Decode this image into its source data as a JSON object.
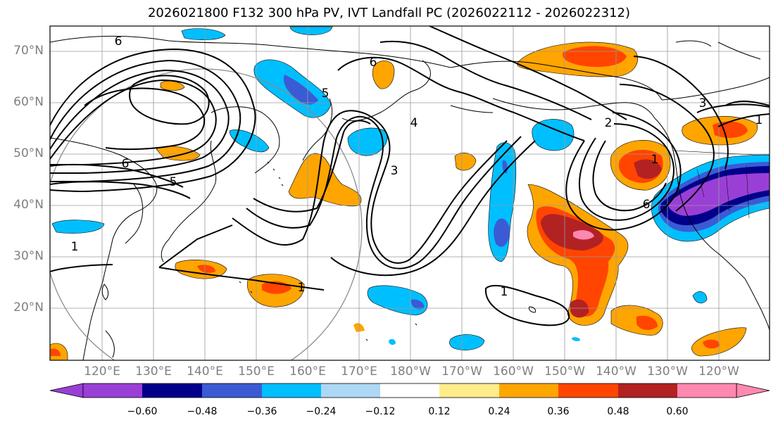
{
  "title": "2026021800 F132 300 hPa PV, IVT Landfall PC (2026022112 - 2026022312)",
  "lat_labels": [
    "70°N",
    "60°N",
    "50°N",
    "40°N",
    "30°N",
    "20°N"
  ],
  "lon_labels": [
    "120°E",
    "130°E",
    "140°E",
    "150°E",
    "160°E",
    "170°E",
    "180°W",
    "170°W",
    "160°W",
    "150°W",
    "140°W",
    "130°W",
    "120°W"
  ],
  "colorbar": {
    "ticks": [
      "−0.60",
      "−0.48",
      "−0.36",
      "−0.24",
      "−0.12",
      "0.12",
      "0.24",
      "0.36",
      "0.48",
      "0.60"
    ],
    "colors": [
      "#9a3fd6",
      "#00008b",
      "#3b5bd4",
      "#00bfff",
      "#add8f5",
      "#ffffff",
      "#ffec8c",
      "#ffa500",
      "#ff4500",
      "#b22222",
      "#ff88b0"
    ]
  },
  "contour_labels": [
    "6",
    "6",
    "5",
    "1",
    "6",
    "5",
    "4",
    "3",
    "2",
    "1",
    "6",
    "3",
    "1",
    "1",
    "1"
  ]
}
